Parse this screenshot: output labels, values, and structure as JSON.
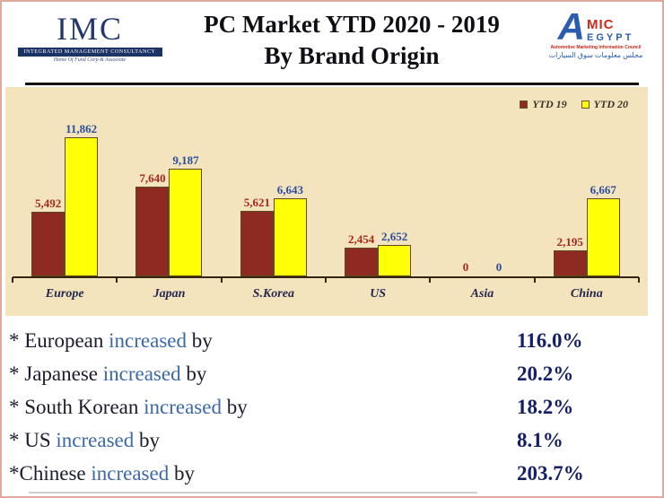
{
  "header": {
    "imc": {
      "acronym": "IMC",
      "banner": "Integrated Management Consultancy",
      "tagline": "Home Of Fund Corp & Associate"
    },
    "title_line1": "PC Market YTD 2020 - 2019",
    "title_line2": "By Brand Origin",
    "amic": {
      "letter_a": "A",
      "mic": "MIC",
      "egypt": "EGYPT",
      "subtitle": "Automotive Marketing Information Council",
      "arabic": "مجلس معلومات سوق السيارات"
    }
  },
  "chart_data": {
    "type": "bar",
    "title": "PC Market YTD 2020 - 2019 By Brand Origin",
    "categories": [
      "Europe",
      "Japan",
      "S.Korea",
      "US",
      "Asia",
      "China"
    ],
    "series": [
      {
        "name": "YTD 19",
        "color": "#8e2a21",
        "label_color": "#a5281e",
        "values": [
          5492,
          7640,
          5621,
          2454,
          0,
          2195
        ],
        "labels": [
          "5,492",
          "7,640",
          "5,621",
          "2,454",
          "0",
          "2,195"
        ]
      },
      {
        "name": "YTD 20",
        "color": "#ffff05",
        "label_color": "#2d4d9e",
        "values": [
          11862,
          9187,
          6643,
          2652,
          0,
          6667
        ],
        "labels": [
          "11,862",
          "9,187",
          "6,643",
          "2,652",
          "0",
          "6,667"
        ]
      }
    ],
    "ylim": [
      0,
      12000
    ],
    "grid": false,
    "legend_position": "top-right",
    "plot_background": "#f3e4bd"
  },
  "summary": {
    "rows": [
      {
        "prefix": "* European ",
        "highlight": "increased",
        "suffix": " by",
        "value": "116.0%"
      },
      {
        "prefix": "* Japanese ",
        "highlight": "increased",
        "suffix": " by",
        "value": "20.2%"
      },
      {
        "prefix": "* South Korean ",
        "highlight": "increased",
        "suffix": " by",
        "value": "18.2%"
      },
      {
        "prefix": "* US ",
        "highlight": "increased",
        "suffix": " by",
        "value": "8.1%"
      },
      {
        "prefix": "*Chinese ",
        "highlight": "increased",
        "suffix": " by",
        "value": "203.7%"
      }
    ]
  }
}
